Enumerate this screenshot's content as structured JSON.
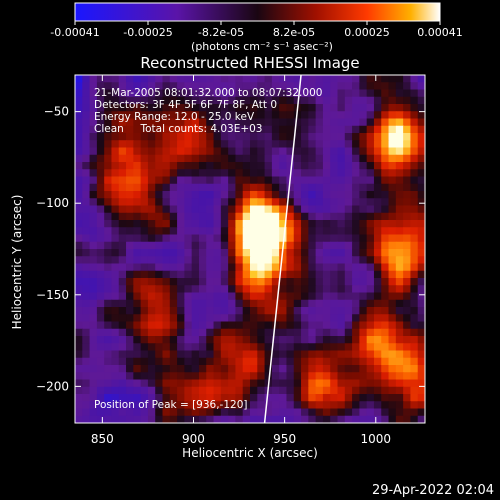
{
  "chart_data": {
    "type": "heatmap",
    "title": "Reconstructed RHESSI Image",
    "xlabel": "Heliocentric X (arcsec)",
    "ylabel": "Heliocentric Y (arcsec)",
    "xlim": [
      835,
      1027
    ],
    "ylim": [
      -220,
      -30
    ],
    "xticks": [
      850,
      900,
      950,
      1000
    ],
    "yticks": [
      -50,
      -100,
      -150,
      -200
    ],
    "colorbar": {
      "min": -0.00041,
      "max": 0.00041,
      "ticks": [
        "-0.00041",
        "-0.00025",
        "-8.2e-05",
        "8.2e-05",
        "0.00025",
        "0.00041"
      ],
      "unit_label": "(photons cm⁻² s⁻¹ asec⁻²)",
      "colors": [
        "#1a16ff",
        "#5a14a8",
        "#2a0a2a",
        "#8a0c00",
        "#ff2000",
        "#ff9a00",
        "#ffffff"
      ]
    },
    "annotations": {
      "time": "21-Mar-2005 08:01:32.000 to 08:07:32.000",
      "detectors": "Detectors: 3F 4F 5F 6F 7F 8F, Att 0",
      "energy": "Energy Range: 12.0 - 25.0 keV",
      "clean": "Clean     Total counts: 4.03E+03",
      "peak": "Position of Peak = [936,-120]"
    },
    "peak": [
      936,
      -120
    ],
    "limb_line": [
      [
        959,
        -30
      ],
      [
        939,
        -220
      ]
    ],
    "sources": [
      {
        "x": 936,
        "y": -115,
        "peak": 1.0
      },
      {
        "x": 940,
        "y": -135,
        "peak": 0.7
      },
      {
        "x": 1010,
        "y": -65,
        "peak": 0.85
      },
      {
        "x": 1015,
        "y": -125,
        "peak": 0.75
      },
      {
        "x": 1005,
        "y": -175,
        "peak": 0.6
      },
      {
        "x": 975,
        "y": -195,
        "peak": 0.65
      },
      {
        "x": 925,
        "y": -185,
        "peak": 0.55
      },
      {
        "x": 880,
        "y": -160,
        "peak": 0.6
      },
      {
        "x": 870,
        "y": -100,
        "peak": 0.55
      },
      {
        "x": 860,
        "y": -70,
        "peak": 0.6
      },
      {
        "x": 895,
        "y": -60,
        "peak": 0.5
      },
      {
        "x": 900,
        "y": -205,
        "peak": 0.4
      },
      {
        "x": 1020,
        "y": -200,
        "peak": 0.5
      },
      {
        "x": 950,
        "y": -55,
        "peak": 0.3
      }
    ]
  },
  "footer": {
    "date": "29-Apr-2022 02:04"
  }
}
